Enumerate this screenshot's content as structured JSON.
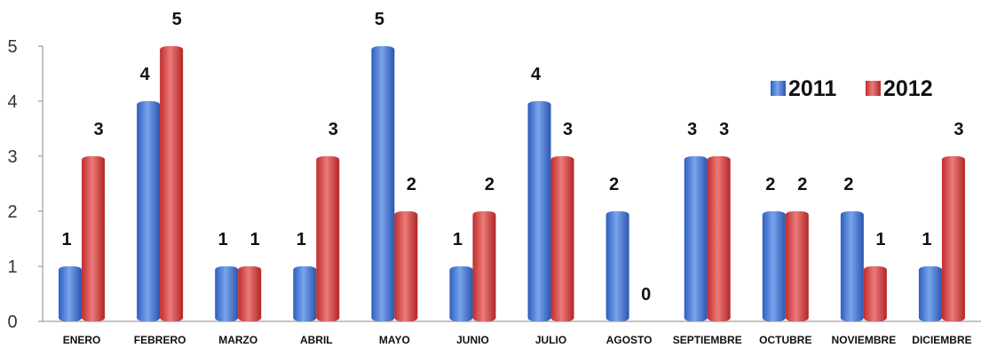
{
  "chart_data": {
    "type": "bar",
    "title": "",
    "xlabel": "",
    "ylabel": "",
    "ylim": [
      0,
      5
    ],
    "yticks": [
      0,
      1,
      2,
      3,
      4,
      5
    ],
    "grid": false,
    "legend_position": "top-right",
    "categories": [
      "ENERO",
      "FEBRERO",
      "MARZO",
      "ABRIL",
      "MAYO",
      "JUNIO",
      "JULIO",
      "AGOSTO",
      "SEPTIEMBRE",
      "OCTUBRE",
      "NOVIEMBRE",
      "DICIEMBRE"
    ],
    "series": [
      {
        "name": "2011",
        "color": "#3a6fd0",
        "values": [
          1,
          4,
          1,
          1,
          5,
          1,
          4,
          2,
          3,
          2,
          2,
          1
        ]
      },
      {
        "name": "2012",
        "color": "#d03a3a",
        "values": [
          3,
          5,
          1,
          3,
          2,
          2,
          3,
          0,
          3,
          2,
          1,
          3
        ]
      }
    ]
  }
}
